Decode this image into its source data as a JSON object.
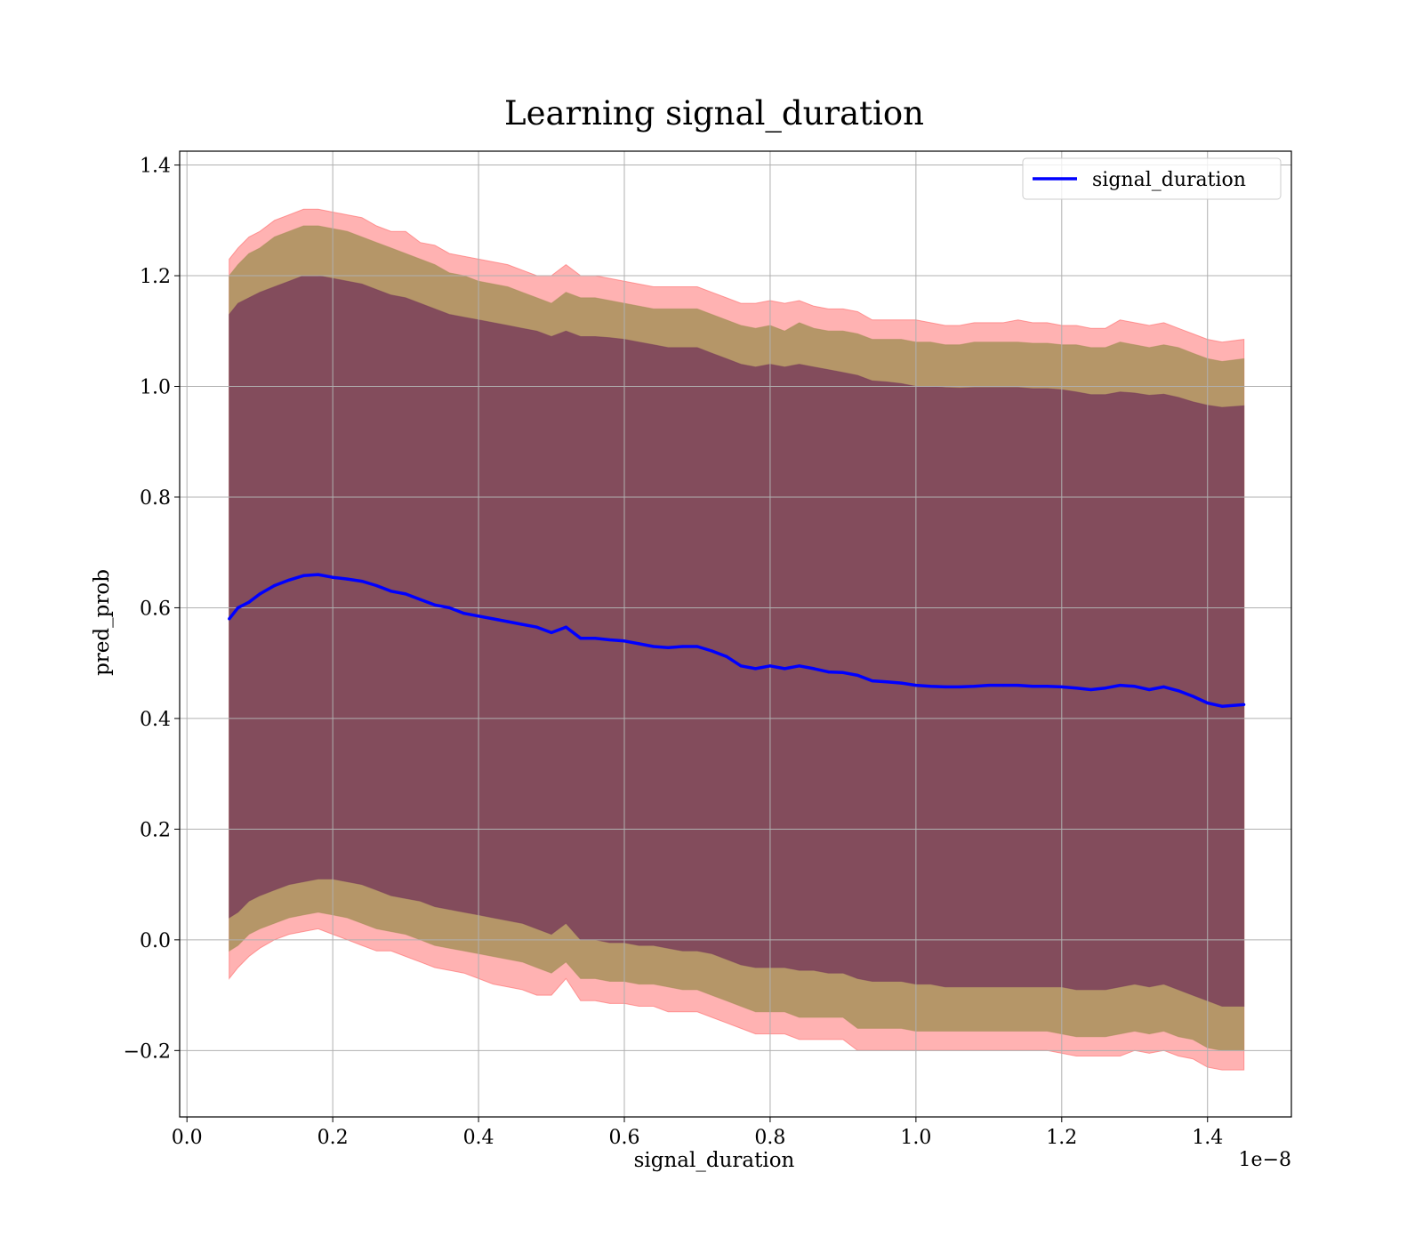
{
  "chart_data": {
    "type": "area",
    "title": "Learning signal_duration",
    "xlabel": "signal_duration",
    "ylabel": "pred_prob",
    "x_offset_text": "1e−8",
    "xlim": [
      -0.01,
      1.515
    ],
    "ylim": [
      -0.32,
      1.425
    ],
    "x_ticks": [
      0.0,
      0.2,
      0.4,
      0.6,
      0.8,
      1.0,
      1.2,
      1.4
    ],
    "x_tick_labels": [
      "0.0",
      "0.2",
      "0.4",
      "0.6",
      "0.8",
      "1.0",
      "1.2",
      "1.4"
    ],
    "y_ticks": [
      -0.2,
      0.0,
      0.2,
      0.4,
      0.6,
      0.8,
      1.0,
      1.2,
      1.4
    ],
    "y_tick_labels": [
      "−0.2",
      "0.0",
      "0.2",
      "0.4",
      "0.6",
      "0.8",
      "1.0",
      "1.2",
      "1.4"
    ],
    "grid": true,
    "legend_position": "top-right",
    "colors": {
      "line": "#0000ff",
      "band_outer": "#ff6666",
      "band_middle": "#a8905a",
      "band_inner": "#7a3f5a",
      "grid": "#b0b0b0"
    },
    "series": [
      {
        "name": "signal_duration",
        "x": [
          0.058,
          0.07,
          0.085,
          0.1,
          0.12,
          0.14,
          0.16,
          0.18,
          0.2,
          0.22,
          0.24,
          0.26,
          0.28,
          0.3,
          0.32,
          0.34,
          0.36,
          0.38,
          0.4,
          0.42,
          0.44,
          0.46,
          0.48,
          0.5,
          0.52,
          0.54,
          0.56,
          0.58,
          0.6,
          0.62,
          0.64,
          0.66,
          0.68,
          0.7,
          0.72,
          0.74,
          0.76,
          0.78,
          0.8,
          0.82,
          0.84,
          0.86,
          0.88,
          0.9,
          0.92,
          0.94,
          0.96,
          0.98,
          1.0,
          1.02,
          1.04,
          1.06,
          1.08,
          1.1,
          1.12,
          1.14,
          1.16,
          1.18,
          1.2,
          1.22,
          1.24,
          1.26,
          1.28,
          1.3,
          1.32,
          1.34,
          1.36,
          1.38,
          1.4,
          1.42,
          1.45
        ],
        "y": [
          0.58,
          0.6,
          0.61,
          0.625,
          0.64,
          0.65,
          0.658,
          0.66,
          0.655,
          0.652,
          0.648,
          0.64,
          0.63,
          0.625,
          0.615,
          0.605,
          0.6,
          0.59,
          0.585,
          0.58,
          0.575,
          0.57,
          0.565,
          0.555,
          0.565,
          0.545,
          0.545,
          0.542,
          0.54,
          0.535,
          0.53,
          0.528,
          0.53,
          0.53,
          0.522,
          0.512,
          0.495,
          0.49,
          0.495,
          0.49,
          0.495,
          0.49,
          0.484,
          0.483,
          0.478,
          0.468,
          0.466,
          0.464,
          0.46,
          0.458,
          0.457,
          0.457,
          0.458,
          0.46,
          0.46,
          0.46,
          0.458,
          0.458,
          0.457,
          0.455,
          0.452,
          0.455,
          0.46,
          0.458,
          0.452,
          0.457,
          0.45,
          0.44,
          0.428,
          0.422,
          0.425
        ]
      }
    ],
    "bands": [
      {
        "name": "outer",
        "lower": [
          -0.07,
          -0.05,
          -0.03,
          -0.015,
          0.0,
          0.01,
          0.015,
          0.02,
          0.01,
          0.0,
          -0.01,
          -0.02,
          -0.02,
          -0.03,
          -0.04,
          -0.05,
          -0.055,
          -0.06,
          -0.07,
          -0.08,
          -0.085,
          -0.09,
          -0.1,
          -0.1,
          -0.07,
          -0.11,
          -0.11,
          -0.115,
          -0.115,
          -0.12,
          -0.12,
          -0.13,
          -0.13,
          -0.13,
          -0.14,
          -0.15,
          -0.16,
          -0.17,
          -0.17,
          -0.17,
          -0.18,
          -0.18,
          -0.18,
          -0.18,
          -0.2,
          -0.2,
          -0.2,
          -0.2,
          -0.2,
          -0.2,
          -0.2,
          -0.2,
          -0.2,
          -0.2,
          -0.2,
          -0.2,
          -0.2,
          -0.2,
          -0.205,
          -0.21,
          -0.21,
          -0.21,
          -0.21,
          -0.2,
          -0.205,
          -0.2,
          -0.21,
          -0.215,
          -0.23,
          -0.235,
          -0.235
        ],
        "upper": [
          1.23,
          1.25,
          1.27,
          1.28,
          1.3,
          1.31,
          1.32,
          1.32,
          1.315,
          1.31,
          1.305,
          1.29,
          1.28,
          1.28,
          1.26,
          1.255,
          1.24,
          1.235,
          1.23,
          1.225,
          1.22,
          1.21,
          1.2,
          1.2,
          1.22,
          1.2,
          1.2,
          1.195,
          1.19,
          1.185,
          1.18,
          1.18,
          1.18,
          1.18,
          1.17,
          1.16,
          1.15,
          1.15,
          1.155,
          1.15,
          1.155,
          1.145,
          1.14,
          1.14,
          1.135,
          1.12,
          1.12,
          1.12,
          1.12,
          1.115,
          1.11,
          1.11,
          1.115,
          1.115,
          1.115,
          1.12,
          1.115,
          1.115,
          1.11,
          1.11,
          1.105,
          1.105,
          1.12,
          1.115,
          1.11,
          1.115,
          1.105,
          1.095,
          1.085,
          1.08,
          1.085
        ]
      },
      {
        "name": "middle",
        "lower": [
          -0.02,
          -0.01,
          0.01,
          0.02,
          0.03,
          0.04,
          0.045,
          0.05,
          0.045,
          0.04,
          0.03,
          0.02,
          0.015,
          0.01,
          0.0,
          -0.01,
          -0.015,
          -0.02,
          -0.025,
          -0.03,
          -0.035,
          -0.04,
          -0.05,
          -0.06,
          -0.04,
          -0.07,
          -0.07,
          -0.075,
          -0.075,
          -0.08,
          -0.08,
          -0.085,
          -0.09,
          -0.09,
          -0.1,
          -0.11,
          -0.12,
          -0.13,
          -0.13,
          -0.13,
          -0.14,
          -0.14,
          -0.14,
          -0.14,
          -0.16,
          -0.16,
          -0.16,
          -0.16,
          -0.165,
          -0.165,
          -0.165,
          -0.165,
          -0.165,
          -0.165,
          -0.165,
          -0.165,
          -0.165,
          -0.165,
          -0.17,
          -0.175,
          -0.175,
          -0.175,
          -0.17,
          -0.165,
          -0.17,
          -0.165,
          -0.175,
          -0.18,
          -0.195,
          -0.2,
          -0.2
        ],
        "upper": [
          1.2,
          1.22,
          1.24,
          1.25,
          1.27,
          1.28,
          1.29,
          1.29,
          1.285,
          1.28,
          1.27,
          1.26,
          1.25,
          1.24,
          1.23,
          1.22,
          1.205,
          1.2,
          1.19,
          1.185,
          1.18,
          1.17,
          1.16,
          1.15,
          1.17,
          1.16,
          1.16,
          1.155,
          1.15,
          1.145,
          1.14,
          1.14,
          1.14,
          1.14,
          1.13,
          1.12,
          1.11,
          1.105,
          1.11,
          1.1,
          1.115,
          1.105,
          1.1,
          1.1,
          1.095,
          1.085,
          1.085,
          1.085,
          1.08,
          1.08,
          1.075,
          1.075,
          1.08,
          1.08,
          1.08,
          1.08,
          1.078,
          1.078,
          1.075,
          1.075,
          1.07,
          1.07,
          1.08,
          1.075,
          1.07,
          1.075,
          1.07,
          1.06,
          1.05,
          1.045,
          1.05
        ]
      },
      {
        "name": "inner",
        "lower": [
          0.04,
          0.05,
          0.07,
          0.08,
          0.09,
          0.1,
          0.105,
          0.11,
          0.11,
          0.105,
          0.1,
          0.09,
          0.08,
          0.075,
          0.07,
          0.06,
          0.055,
          0.05,
          0.045,
          0.04,
          0.035,
          0.03,
          0.02,
          0.01,
          0.03,
          0.0,
          0.0,
          -0.005,
          -0.005,
          -0.01,
          -0.01,
          -0.015,
          -0.02,
          -0.02,
          -0.025,
          -0.035,
          -0.045,
          -0.05,
          -0.05,
          -0.05,
          -0.055,
          -0.055,
          -0.06,
          -0.06,
          -0.07,
          -0.075,
          -0.075,
          -0.075,
          -0.08,
          -0.08,
          -0.085,
          -0.085,
          -0.085,
          -0.085,
          -0.085,
          -0.085,
          -0.085,
          -0.085,
          -0.085,
          -0.09,
          -0.09,
          -0.09,
          -0.085,
          -0.08,
          -0.085,
          -0.08,
          -0.09,
          -0.1,
          -0.11,
          -0.12,
          -0.12
        ],
        "upper": [
          1.13,
          1.15,
          1.16,
          1.17,
          1.18,
          1.19,
          1.2,
          1.2,
          1.195,
          1.19,
          1.185,
          1.175,
          1.165,
          1.16,
          1.15,
          1.14,
          1.13,
          1.125,
          1.12,
          1.115,
          1.11,
          1.105,
          1.1,
          1.09,
          1.1,
          1.09,
          1.09,
          1.088,
          1.085,
          1.08,
          1.075,
          1.07,
          1.07,
          1.07,
          1.06,
          1.05,
          1.04,
          1.035,
          1.04,
          1.035,
          1.04,
          1.035,
          1.03,
          1.025,
          1.02,
          1.01,
          1.008,
          1.005,
          1.0,
          1.0,
          0.998,
          0.997,
          0.998,
          0.998,
          0.998,
          0.998,
          0.996,
          0.996,
          0.994,
          0.99,
          0.985,
          0.985,
          0.99,
          0.988,
          0.984,
          0.986,
          0.98,
          0.972,
          0.966,
          0.962,
          0.965
        ]
      }
    ]
  }
}
